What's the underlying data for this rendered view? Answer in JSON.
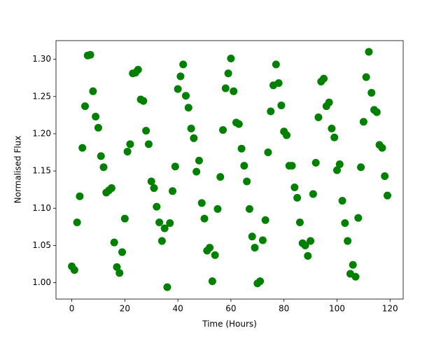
{
  "chart_data": {
    "type": "scatter",
    "x_label": "Time (Hours)",
    "y_label": "Normalised Flux",
    "x": [
      0,
      1,
      2,
      3,
      4,
      5,
      6,
      7,
      8,
      9,
      10,
      11,
      12,
      13,
      14,
      15,
      16,
      17,
      18,
      19,
      20,
      21,
      22,
      23,
      24,
      25,
      26,
      27,
      28,
      29,
      30,
      31,
      32,
      33,
      34,
      35,
      36,
      37,
      38,
      39,
      40,
      41,
      42,
      43,
      44,
      45,
      46,
      47,
      48,
      49,
      50,
      51,
      52,
      53,
      54,
      55,
      56,
      57,
      58,
      59,
      60,
      61,
      62,
      63,
      64,
      65,
      66,
      67,
      68,
      69,
      70,
      71,
      72,
      73,
      74,
      75,
      76,
      77,
      78,
      79,
      80,
      81,
      82,
      83,
      84,
      85,
      86,
      87,
      88,
      89,
      90,
      91,
      92,
      93,
      94,
      95,
      96,
      97,
      98,
      99,
      100,
      101,
      102,
      103,
      104,
      105,
      106,
      107,
      108,
      109,
      110,
      111,
      112,
      113,
      114,
      115,
      116,
      117,
      118,
      119
    ],
    "values": [
      1.022,
      1.017,
      1.081,
      1.116,
      1.181,
      1.237,
      1.305,
      1.306,
      1.257,
      1.223,
      1.208,
      1.17,
      1.155,
      1.121,
      1.124,
      1.127,
      1.054,
      1.021,
      1.013,
      1.041,
      1.086,
      1.176,
      1.186,
      1.281,
      1.282,
      1.286,
      1.246,
      1.244,
      1.204,
      1.186,
      1.136,
      1.127,
      1.102,
      1.081,
      1.056,
      1.073,
      0.994,
      1.08,
      1.123,
      1.156,
      1.26,
      1.277,
      1.293,
      1.251,
      1.235,
      1.207,
      1.194,
      1.149,
      1.164,
      1.107,
      1.086,
      1.043,
      1.047,
      1.002,
      1.037,
      1.099,
      1.142,
      1.205,
      1.261,
      1.281,
      1.301,
      1.257,
      1.215,
      1.213,
      1.18,
      1.157,
      1.136,
      1.099,
      1.062,
      1.047,
      0.999,
      1.002,
      1.057,
      1.084,
      1.175,
      1.23,
      1.265,
      1.293,
      1.268,
      1.238,
      1.203,
      1.198,
      1.157,
      1.157,
      1.128,
      1.114,
      1.081,
      1.053,
      1.05,
      1.036,
      1.056,
      1.119,
      1.161,
      1.222,
      1.27,
      1.274,
      1.237,
      1.242,
      1.207,
      1.195,
      1.151,
      1.159,
      1.11,
      1.08,
      1.056,
      1.012,
      1.024,
      1.008,
      1.087,
      1.155,
      1.216,
      1.276,
      1.31,
      1.255,
      1.232,
      1.229,
      1.185,
      1.181,
      1.143,
      1.117
    ],
    "color": "#008000",
    "xlim": [
      -5.95,
      124.95
    ],
    "xticks": [
      0,
      20,
      40,
      60,
      80,
      100,
      120
    ],
    "ylim": [
      0.978,
      1.325
    ],
    "yticks": [
      {
        "value": 1,
        "label": "1.00"
      },
      1.05,
      {
        "value": 1.1,
        "label": "1.10"
      },
      1.15,
      {
        "value": 1.2,
        "label": "1.20"
      },
      1.25,
      {
        "value": 1.3,
        "label": "1.30"
      }
    ]
  }
}
